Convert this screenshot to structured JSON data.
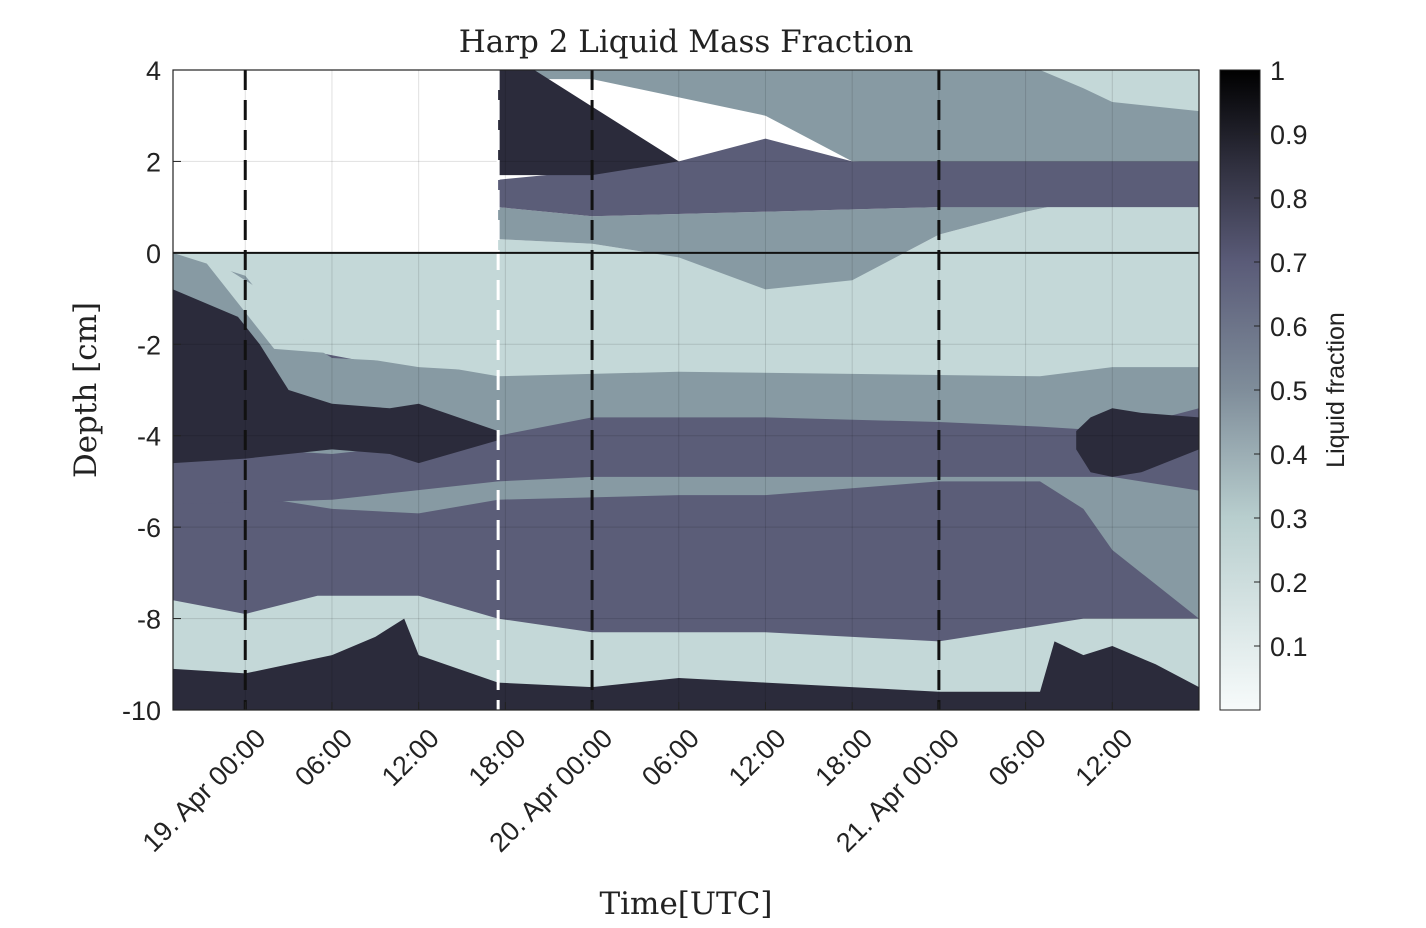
{
  "chart_data": {
    "type": "heatmap",
    "title": "Harp 2 Liquid Mass Fraction",
    "xlabel": "Time[UTC]",
    "ylabel": "Depth [cm]",
    "ylim": [
      -10,
      4
    ],
    "yticks": [
      "4",
      "2",
      "0",
      "-2",
      "-4",
      "-6",
      "-8",
      "-10"
    ],
    "xlim_hours": [
      -5,
      66
    ],
    "xticks": [
      {
        "hour": 0,
        "label": "19. Apr 00:00"
      },
      {
        "hour": 6,
        "label": "06:00"
      },
      {
        "hour": 12,
        "label": "12:00"
      },
      {
        "hour": 18,
        "label": "18:00"
      },
      {
        "hour": 24,
        "label": "20. Apr 00:00"
      },
      {
        "hour": 30,
        "label": "06:00"
      },
      {
        "hour": 36,
        "label": "12:00"
      },
      {
        "hour": 42,
        "label": "18:00"
      },
      {
        "hour": 48,
        "label": "21. Apr 00:00"
      },
      {
        "hour": 54,
        "label": "06:00"
      },
      {
        "hour": 60,
        "label": "12:00"
      }
    ],
    "colorbar": {
      "label": "Liquid fraction",
      "range": [
        0,
        1
      ],
      "ticks": [
        "1",
        "0.9",
        "0.8",
        "0.7",
        "0.6",
        "0.5",
        "0.4",
        "0.3",
        "0.2",
        "0.1"
      ],
      "tick_values": [
        1,
        0.9,
        0.8,
        0.7,
        0.6,
        0.5,
        0.4,
        0.3,
        0.2,
        0.1
      ]
    },
    "dashed_lines_hours": [
      {
        "hour": 0,
        "color": "#111111"
      },
      {
        "hour": 17.5,
        "color": "#ffffff"
      },
      {
        "hour": 24,
        "color": "#111111"
      },
      {
        "hour": 48,
        "color": "#111111"
      }
    ],
    "surface_depth": 0,
    "levels": [
      {
        "value": 0.25,
        "color": "#c4d8d8"
      },
      {
        "value": 0.45,
        "color": "#879aa3"
      },
      {
        "value": 0.6,
        "color": "#5b5d78"
      },
      {
        "value": 0.85,
        "color": "#2b2b3b"
      }
    ],
    "bands": [
      {
        "level": 0.6,
        "upper": [
          [
            -5,
            0
          ],
          [
            -0.5,
            -0.6
          ],
          [
            2,
            -2.0
          ],
          [
            12,
            -2.6
          ],
          [
            17.5,
            -2.8
          ],
          [
            30,
            -3.0
          ],
          [
            42,
            -3.2
          ],
          [
            55,
            -3.4
          ],
          [
            60,
            -3.1
          ],
          [
            66,
            -3.1
          ]
        ],
        "lower": [
          [
            -5,
            -7.6
          ],
          [
            0,
            -7.9
          ],
          [
            5,
            -7.5
          ],
          [
            12,
            -7.5
          ],
          [
            17.5,
            -8.0
          ],
          [
            24,
            -8.3
          ],
          [
            36,
            -8.3
          ],
          [
            48,
            -8.5
          ],
          [
            54,
            -8.2
          ],
          [
            58,
            -8.0
          ],
          [
            66,
            -8.0
          ]
        ]
      },
      {
        "level": 0.45,
        "upper": [
          [
            -5,
            0
          ],
          [
            0,
            -0.5
          ],
          [
            3,
            -1.7
          ],
          [
            6,
            -2.3
          ],
          [
            12,
            -2.4
          ],
          [
            17.5,
            -2.7
          ],
          [
            30,
            -2.6
          ],
          [
            55,
            -2.7
          ],
          [
            60,
            -2.5
          ],
          [
            66,
            -2.5
          ]
        ],
        "lower": [
          [
            -5,
            -5.5
          ],
          [
            0,
            -5.3
          ],
          [
            6,
            -5.6
          ],
          [
            12,
            -5.7
          ],
          [
            17.5,
            -5.4
          ],
          [
            30,
            -5.3
          ],
          [
            36,
            -5.3
          ],
          [
            48,
            -5.0
          ],
          [
            55,
            -5.0
          ],
          [
            58,
            -5.6
          ],
          [
            60,
            -6.5
          ],
          [
            66,
            -8.0
          ]
        ]
      },
      {
        "level": 0.25,
        "upper": [
          [
            -3,
            0
          ],
          [
            2,
            -1.0
          ],
          [
            4,
            -1.9
          ],
          [
            8,
            -2.0
          ],
          [
            12,
            -2.0
          ],
          [
            17.5,
            -2.4
          ],
          [
            24,
            -2.5
          ],
          [
            36,
            -2.5
          ],
          [
            55,
            -2.6
          ],
          [
            66,
            -2.5
          ]
        ],
        "lower": [
          [
            -3,
            -0.1
          ],
          [
            2,
            -2.1
          ],
          [
            6,
            -2.2
          ],
          [
            12,
            -2.5
          ],
          [
            17.5,
            -2.6
          ],
          [
            24,
            -2.5
          ],
          [
            36,
            -2.5
          ],
          [
            55,
            -2.6
          ],
          [
            66,
            -2.5
          ]
        ]
      },
      {
        "level": 0.6,
        "upper": [
          [
            -5,
            -4.2
          ],
          [
            6,
            -4.4
          ],
          [
            17.5,
            -4.0
          ],
          [
            24,
            -3.6
          ],
          [
            36,
            -3.6
          ],
          [
            48,
            -3.7
          ],
          [
            55,
            -3.8
          ],
          [
            60,
            -3.9
          ],
          [
            66,
            -3.4
          ]
        ],
        "lower": [
          [
            -5,
            -5.5
          ],
          [
            6,
            -5.4
          ],
          [
            17.5,
            -5.0
          ],
          [
            24,
            -4.9
          ],
          [
            36,
            -4.9
          ],
          [
            48,
            -4.9
          ],
          [
            55,
            -4.9
          ],
          [
            60,
            -4.9
          ],
          [
            66,
            -5.2
          ]
        ]
      },
      {
        "level": 0.85,
        "upper": [
          [
            -5,
            -0.8
          ],
          [
            -0.5,
            -1.4
          ],
          [
            1,
            -2.0
          ],
          [
            3,
            -3.0
          ],
          [
            6,
            -3.3
          ],
          [
            10,
            -3.4
          ],
          [
            12,
            -3.3
          ],
          [
            17.5,
            -3.9
          ]
        ],
        "lower": [
          [
            -5,
            -4.6
          ],
          [
            0,
            -4.5
          ],
          [
            6,
            -4.3
          ],
          [
            10,
            -4.4
          ],
          [
            12,
            -4.6
          ],
          [
            17.5,
            -4.1
          ]
        ]
      },
      {
        "level": 0.85,
        "upper": [
          [
            57.5,
            -3.9
          ],
          [
            58.5,
            -3.6
          ],
          [
            60,
            -3.4
          ],
          [
            62,
            -3.5
          ],
          [
            66,
            -3.6
          ]
        ],
        "lower": [
          [
            57.5,
            -4.3
          ],
          [
            58.5,
            -4.8
          ],
          [
            60,
            -4.9
          ],
          [
            62,
            -4.8
          ],
          [
            66,
            -4.3
          ]
        ]
      },
      {
        "level": 0.85,
        "upper": [
          [
            -5,
            -9.1
          ],
          [
            0,
            -9.2
          ],
          [
            6,
            -8.8
          ],
          [
            9,
            -8.4
          ],
          [
            11,
            -8.0
          ],
          [
            12,
            -8.8
          ],
          [
            17.5,
            -9.4
          ],
          [
            24,
            -9.5
          ],
          [
            30,
            -9.3
          ],
          [
            36,
            -9.4
          ],
          [
            48,
            -9.6
          ],
          [
            55,
            -9.6
          ],
          [
            56,
            -8.5
          ],
          [
            58,
            -8.8
          ],
          [
            60,
            -8.6
          ],
          [
            63,
            -9.0
          ],
          [
            66,
            -9.5
          ]
        ],
        "lower": [
          [
            -5,
            -10
          ],
          [
            66,
            -10
          ]
        ]
      },
      {
        "level": 0.25,
        "upper": [
          [
            17.5,
            0.3
          ],
          [
            24,
            0.2
          ],
          [
            30,
            -0.1
          ],
          [
            36,
            -0.8
          ],
          [
            42,
            -0.6
          ],
          [
            48,
            0.4
          ],
          [
            54,
            0.9
          ],
          [
            60,
            1.3
          ],
          [
            66,
            1.4
          ]
        ],
        "lower": [
          [
            17.5,
            0
          ],
          [
            66,
            0
          ]
        ]
      },
      {
        "level": 0.45,
        "upper": [
          [
            17.5,
            1.0
          ],
          [
            24,
            0.8
          ],
          [
            36,
            0.9
          ],
          [
            48,
            1.0
          ],
          [
            60,
            1.4
          ],
          [
            66,
            1.4
          ]
        ],
        "lower": [
          [
            17.5,
            0.3
          ],
          [
            24,
            0.2
          ],
          [
            30,
            -0.1
          ],
          [
            36,
            -0.8
          ],
          [
            42,
            -0.6
          ],
          [
            48,
            0.4
          ],
          [
            54,
            0.9
          ],
          [
            60,
            1.3
          ],
          [
            66,
            1.4
          ]
        ]
      },
      {
        "level": 0.6,
        "upper": [
          [
            17.5,
            1.6
          ],
          [
            24,
            1.8
          ],
          [
            30,
            2.0
          ],
          [
            36,
            2.5
          ],
          [
            42,
            2.0
          ],
          [
            48,
            2.1
          ],
          [
            66,
            2.1
          ]
        ],
        "lower": [
          [
            17.5,
            1.0
          ],
          [
            24,
            0.8
          ],
          [
            36,
            0.9
          ],
          [
            48,
            1.0
          ],
          [
            66,
            1.0
          ]
        ]
      },
      {
        "level": 0.45,
        "upper": [
          [
            17.5,
            4
          ],
          [
            66,
            4
          ]
        ],
        "lower": [
          [
            17.5,
            3.8
          ],
          [
            24,
            3.8
          ],
          [
            36,
            3.0
          ],
          [
            42,
            2.0
          ],
          [
            48,
            2.0
          ],
          [
            66,
            2.0
          ]
        ]
      },
      {
        "level": 0.85,
        "upper": [
          [
            17.5,
            4
          ],
          [
            20,
            4
          ],
          [
            24,
            3.2
          ],
          [
            30,
            2.0
          ]
        ],
        "lower": [
          [
            17.5,
            1.7
          ],
          [
            24,
            1.7
          ],
          [
            30,
            2.0
          ]
        ]
      },
      {
        "level": 0.25,
        "upper": [
          [
            55,
            4
          ],
          [
            58,
            3.6
          ],
          [
            60,
            3.3
          ],
          [
            66,
            3.1
          ]
        ],
        "lower": [
          [
            55,
            4
          ],
          [
            66,
            4
          ]
        ]
      }
    ]
  }
}
